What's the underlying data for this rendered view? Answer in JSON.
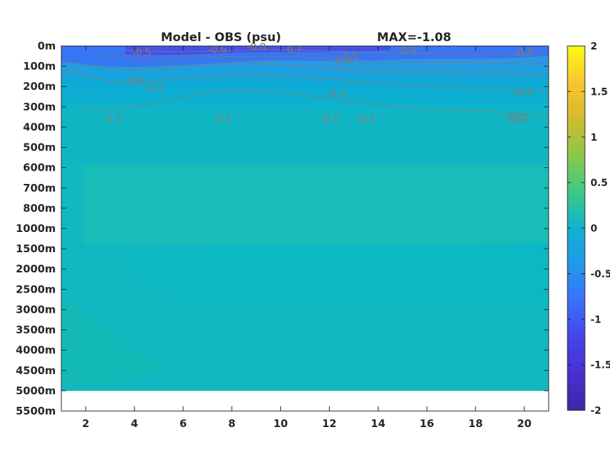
{
  "chart_data": {
    "type": "heatmap",
    "title": "Model - OBS (psu)",
    "subtitle": "MAX=-1.08",
    "xlabel": "",
    "ylabel": "",
    "xlim": [
      1,
      21
    ],
    "xticks": [
      2,
      4,
      6,
      8,
      10,
      12,
      14,
      16,
      18,
      20
    ],
    "yticks": [
      "0m",
      "100m",
      "200m",
      "300m",
      "400m",
      "500m",
      "600m",
      "700m",
      "800m",
      "1000m",
      "1500m",
      "2000m",
      "2500m",
      "3000m",
      "3500m",
      "4000m",
      "4500m",
      "5000m",
      "5500m"
    ],
    "colorbar": {
      "ticks": [
        "2",
        "1.5",
        "1",
        "0.5",
        "0",
        "-0.5",
        "-1",
        "-1.5",
        "-2"
      ],
      "range": [
        -2,
        2
      ]
    },
    "colors": [
      "#3e26a8",
      "#4744e8",
      "#3d6ffd",
      "#2298ea",
      "#0fb3d0",
      "#1dc1ab",
      "#3ec986",
      "#8cc74a",
      "#d1bb2e",
      "#fbc42f",
      "#f9fb15"
    ],
    "contour_labels": [
      {
        "text": "-0.5",
        "x": 4.3,
        "depth": "0m"
      },
      {
        "text": "-0.6",
        "x": 7.4,
        "depth": "0m"
      },
      {
        "text": "-0.8",
        "x": 9.0,
        "depth": "0m"
      },
      {
        "text": "-0.7",
        "x": 10.5,
        "depth": "0m"
      },
      {
        "text": "-0.5",
        "x": 12.8,
        "depth": "0m"
      },
      {
        "text": "-0.4",
        "x": 12.5,
        "depth": "100m"
      },
      {
        "text": "-0.6",
        "x": 15.2,
        "depth": "0m"
      },
      {
        "text": "-0.5",
        "x": 20.0,
        "depth": "0m"
      },
      {
        "text": "-0.6",
        "x": 4.0,
        "depth": "100m"
      },
      {
        "text": "-0.2",
        "x": 4.8,
        "depth": "100m"
      },
      {
        "text": "-0.3",
        "x": 12.3,
        "depth": "100m"
      },
      {
        "text": "-0.2",
        "x": 12.0,
        "depth": "200m"
      },
      {
        "text": "-0.3",
        "x": 19.9,
        "depth": "100m"
      },
      {
        "text": "-0.2",
        "x": 19.6,
        "depth": "200m"
      },
      {
        "text": "-0.1",
        "x": 7.6,
        "depth": "200m"
      },
      {
        "text": "-0.1",
        "x": 3.1,
        "depth": "300m"
      },
      {
        "text": "-0.1",
        "x": 13.5,
        "depth": "300m"
      },
      {
        "text": "-0.1",
        "x": 19.8,
        "depth": "300m"
      }
    ]
  }
}
